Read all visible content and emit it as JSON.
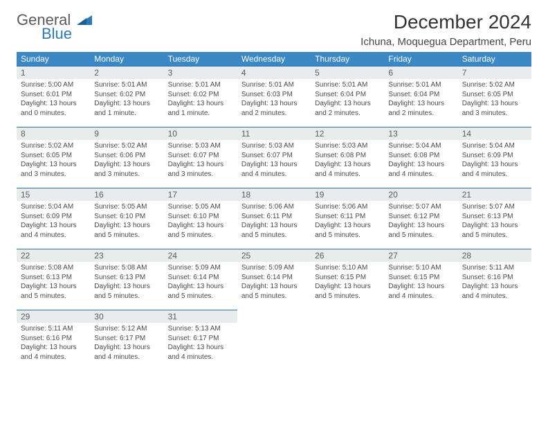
{
  "brand": {
    "general": "General",
    "blue": "Blue"
  },
  "title": "December 2024",
  "location": "Ichuna, Moquegua Department, Peru",
  "colors": {
    "header_bg": "#3a88c6",
    "header_text": "#ffffff",
    "daynum_bg": "#e9eced",
    "daynum_border": "#2e6fa6",
    "brand_blue": "#2a7ab9",
    "text": "#333333"
  },
  "weekdays": [
    "Sunday",
    "Monday",
    "Tuesday",
    "Wednesday",
    "Thursday",
    "Friday",
    "Saturday"
  ],
  "days": [
    {
      "n": "1",
      "sr": "Sunrise: 5:00 AM",
      "ss": "Sunset: 6:01 PM",
      "dl": "Daylight: 13 hours and 0 minutes."
    },
    {
      "n": "2",
      "sr": "Sunrise: 5:01 AM",
      "ss": "Sunset: 6:02 PM",
      "dl": "Daylight: 13 hours and 1 minute."
    },
    {
      "n": "3",
      "sr": "Sunrise: 5:01 AM",
      "ss": "Sunset: 6:02 PM",
      "dl": "Daylight: 13 hours and 1 minute."
    },
    {
      "n": "4",
      "sr": "Sunrise: 5:01 AM",
      "ss": "Sunset: 6:03 PM",
      "dl": "Daylight: 13 hours and 2 minutes."
    },
    {
      "n": "5",
      "sr": "Sunrise: 5:01 AM",
      "ss": "Sunset: 6:04 PM",
      "dl": "Daylight: 13 hours and 2 minutes."
    },
    {
      "n": "6",
      "sr": "Sunrise: 5:01 AM",
      "ss": "Sunset: 6:04 PM",
      "dl": "Daylight: 13 hours and 2 minutes."
    },
    {
      "n": "7",
      "sr": "Sunrise: 5:02 AM",
      "ss": "Sunset: 6:05 PM",
      "dl": "Daylight: 13 hours and 3 minutes."
    },
    {
      "n": "8",
      "sr": "Sunrise: 5:02 AM",
      "ss": "Sunset: 6:05 PM",
      "dl": "Daylight: 13 hours and 3 minutes."
    },
    {
      "n": "9",
      "sr": "Sunrise: 5:02 AM",
      "ss": "Sunset: 6:06 PM",
      "dl": "Daylight: 13 hours and 3 minutes."
    },
    {
      "n": "10",
      "sr": "Sunrise: 5:03 AM",
      "ss": "Sunset: 6:07 PM",
      "dl": "Daylight: 13 hours and 3 minutes."
    },
    {
      "n": "11",
      "sr": "Sunrise: 5:03 AM",
      "ss": "Sunset: 6:07 PM",
      "dl": "Daylight: 13 hours and 4 minutes."
    },
    {
      "n": "12",
      "sr": "Sunrise: 5:03 AM",
      "ss": "Sunset: 6:08 PM",
      "dl": "Daylight: 13 hours and 4 minutes."
    },
    {
      "n": "13",
      "sr": "Sunrise: 5:04 AM",
      "ss": "Sunset: 6:08 PM",
      "dl": "Daylight: 13 hours and 4 minutes."
    },
    {
      "n": "14",
      "sr": "Sunrise: 5:04 AM",
      "ss": "Sunset: 6:09 PM",
      "dl": "Daylight: 13 hours and 4 minutes."
    },
    {
      "n": "15",
      "sr": "Sunrise: 5:04 AM",
      "ss": "Sunset: 6:09 PM",
      "dl": "Daylight: 13 hours and 4 minutes."
    },
    {
      "n": "16",
      "sr": "Sunrise: 5:05 AM",
      "ss": "Sunset: 6:10 PM",
      "dl": "Daylight: 13 hours and 5 minutes."
    },
    {
      "n": "17",
      "sr": "Sunrise: 5:05 AM",
      "ss": "Sunset: 6:10 PM",
      "dl": "Daylight: 13 hours and 5 minutes."
    },
    {
      "n": "18",
      "sr": "Sunrise: 5:06 AM",
      "ss": "Sunset: 6:11 PM",
      "dl": "Daylight: 13 hours and 5 minutes."
    },
    {
      "n": "19",
      "sr": "Sunrise: 5:06 AM",
      "ss": "Sunset: 6:11 PM",
      "dl": "Daylight: 13 hours and 5 minutes."
    },
    {
      "n": "20",
      "sr": "Sunrise: 5:07 AM",
      "ss": "Sunset: 6:12 PM",
      "dl": "Daylight: 13 hours and 5 minutes."
    },
    {
      "n": "21",
      "sr": "Sunrise: 5:07 AM",
      "ss": "Sunset: 6:13 PM",
      "dl": "Daylight: 13 hours and 5 minutes."
    },
    {
      "n": "22",
      "sr": "Sunrise: 5:08 AM",
      "ss": "Sunset: 6:13 PM",
      "dl": "Daylight: 13 hours and 5 minutes."
    },
    {
      "n": "23",
      "sr": "Sunrise: 5:08 AM",
      "ss": "Sunset: 6:13 PM",
      "dl": "Daylight: 13 hours and 5 minutes."
    },
    {
      "n": "24",
      "sr": "Sunrise: 5:09 AM",
      "ss": "Sunset: 6:14 PM",
      "dl": "Daylight: 13 hours and 5 minutes."
    },
    {
      "n": "25",
      "sr": "Sunrise: 5:09 AM",
      "ss": "Sunset: 6:14 PM",
      "dl": "Daylight: 13 hours and 5 minutes."
    },
    {
      "n": "26",
      "sr": "Sunrise: 5:10 AM",
      "ss": "Sunset: 6:15 PM",
      "dl": "Daylight: 13 hours and 5 minutes."
    },
    {
      "n": "27",
      "sr": "Sunrise: 5:10 AM",
      "ss": "Sunset: 6:15 PM",
      "dl": "Daylight: 13 hours and 4 minutes."
    },
    {
      "n": "28",
      "sr": "Sunrise: 5:11 AM",
      "ss": "Sunset: 6:16 PM",
      "dl": "Daylight: 13 hours and 4 minutes."
    },
    {
      "n": "29",
      "sr": "Sunrise: 5:11 AM",
      "ss": "Sunset: 6:16 PM",
      "dl": "Daylight: 13 hours and 4 minutes."
    },
    {
      "n": "30",
      "sr": "Sunrise: 5:12 AM",
      "ss": "Sunset: 6:17 PM",
      "dl": "Daylight: 13 hours and 4 minutes."
    },
    {
      "n": "31",
      "sr": "Sunrise: 5:13 AM",
      "ss": "Sunset: 6:17 PM",
      "dl": "Daylight: 13 hours and 4 minutes."
    }
  ]
}
